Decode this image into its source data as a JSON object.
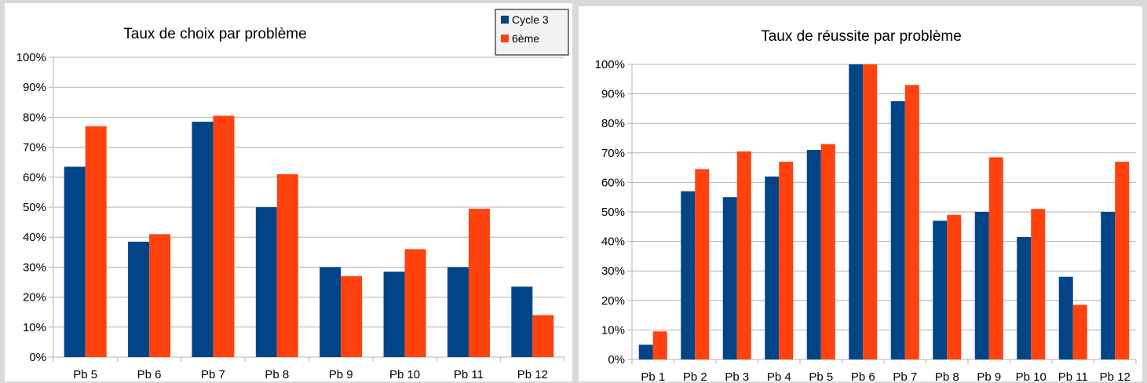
{
  "colors": {
    "cycle3": "#004586",
    "sixieme": "#ff420e"
  },
  "chart_data": [
    {
      "type": "bar",
      "title": "Taux de choix par problème",
      "categories": [
        "Pb 5",
        "Pb 6",
        "Pb 7",
        "Pb 8",
        "Pb 9",
        "Pb 10",
        "Pb 11",
        "Pb 12"
      ],
      "series": [
        {
          "name": "Cycle 3",
          "color": "#004586",
          "values": [
            63.5,
            38.5,
            78.5,
            50,
            30,
            28.5,
            30,
            23.5
          ]
        },
        {
          "name": "6ème",
          "color": "#ff420e",
          "values": [
            77,
            41,
            80.5,
            61,
            27,
            36,
            49.5,
            14
          ]
        }
      ],
      "yticks": [
        "0%",
        "10%",
        "20%",
        "30%",
        "40%",
        "50%",
        "60%",
        "70%",
        "80%",
        "90%",
        "100%"
      ],
      "ylim": [
        0,
        100
      ],
      "grid": true,
      "legend": "top-right"
    },
    {
      "type": "bar",
      "title": "Taux de réussite par problème",
      "categories": [
        "Pb 1",
        "Pb 2",
        "Pb 3",
        "Pb 4",
        "Pb 5",
        "Pb 6",
        "Pb 7",
        "Pb 8",
        "Pb 9",
        "Pb 10",
        "Pb 11",
        "Pb 12"
      ],
      "series": [
        {
          "name": "Cycle 3",
          "color": "#004586",
          "values": [
            5,
            57,
            55,
            62,
            71,
            100,
            87.5,
            47,
            50,
            41.5,
            28,
            50
          ]
        },
        {
          "name": "6ème",
          "color": "#ff420e",
          "values": [
            9.5,
            64.5,
            70.5,
            67,
            73,
            100,
            93,
            49,
            68.5,
            51,
            18.5,
            67
          ]
        }
      ],
      "yticks": [
        "0%",
        "10%",
        "20%",
        "30%",
        "40%",
        "50%",
        "60%",
        "70%",
        "80%",
        "90%",
        "100%"
      ],
      "ylim": [
        0,
        100
      ],
      "grid": true,
      "legend": "none"
    }
  ]
}
